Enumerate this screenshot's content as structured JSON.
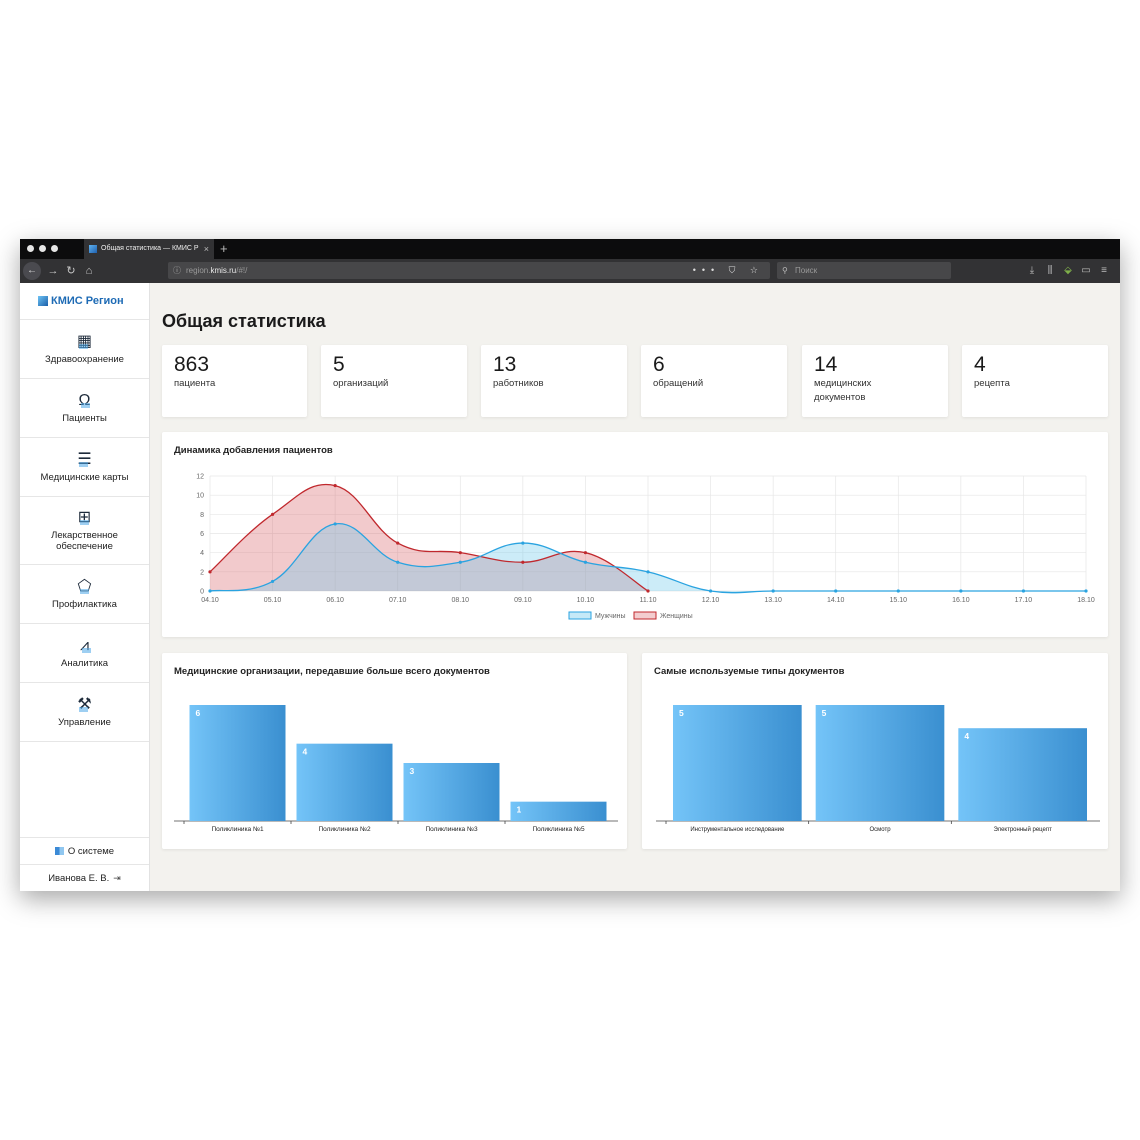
{
  "browser": {
    "tab_title": "Общая статистика — КМИС Р",
    "new_tab": "+",
    "url_prefix": "region.",
    "url_host": "kmis.ru",
    "url_path": "/#!/",
    "url_actions": "••• ⛉ ☆",
    "search_placeholder": "Поиск"
  },
  "app": {
    "logo_text": "КМИС Регион",
    "nav": [
      {
        "label": "Здравоохранение",
        "icon": "hospital-icon"
      },
      {
        "label": "Пациенты",
        "icon": "patient-icon"
      },
      {
        "label": "Медицинские карты",
        "icon": "medical-card-icon"
      },
      {
        "label": "Лекарственное обеспечение",
        "icon": "pills-icon"
      },
      {
        "label": "Профилактика",
        "icon": "prevention-icon"
      },
      {
        "label": "Аналитика",
        "icon": "analytics-icon"
      },
      {
        "label": "Управление",
        "icon": "wrench-icon"
      }
    ],
    "about_label": "О системе",
    "user_name": "Иванова Е. В."
  },
  "page": {
    "title": "Общая статистика",
    "stats": [
      {
        "value": "863",
        "label": "пациента"
      },
      {
        "value": "5",
        "label": "организаций"
      },
      {
        "value": "13",
        "label": "работников"
      },
      {
        "value": "6",
        "label": "обращений"
      },
      {
        "value": "14",
        "label": "медицинских документов"
      },
      {
        "value": "4",
        "label": "рецепта"
      }
    ]
  },
  "colors": {
    "men": "#2aa3e0",
    "women": "#c0282d",
    "bar_light": "#74c4f8",
    "bar_dark": "#3a8fd0"
  },
  "chart_data": [
    {
      "type": "area",
      "title": "Динамика добавления пациентов",
      "categories": [
        "04.10",
        "05.10",
        "06.10",
        "07.10",
        "08.10",
        "09.10",
        "10.10",
        "11.10",
        "12.10",
        "13.10",
        "14.10",
        "15.10",
        "16.10",
        "17.10",
        "18.10"
      ],
      "yticks": [
        0,
        2,
        4,
        6,
        8,
        10,
        12
      ],
      "ylim": [
        0,
        12
      ],
      "grid": true,
      "legend_position": "bottom",
      "series": [
        {
          "name": "Мужчины",
          "color": "#2aa3e0",
          "values": [
            0,
            1,
            7,
            3,
            3,
            5,
            3,
            2,
            0,
            0,
            0,
            0,
            0,
            0,
            0
          ]
        },
        {
          "name": "Женщины",
          "color": "#c0282d",
          "values": [
            2,
            8,
            11,
            5,
            4,
            3,
            4,
            0,
            null,
            null,
            null,
            null,
            null,
            null,
            null
          ]
        }
      ]
    },
    {
      "type": "bar",
      "title": "Медицинские организации, передавшие больше всего документов",
      "categories": [
        "Поликлиника №1",
        "Поликлиника №2",
        "Поликлиника №3",
        "Поликлиника №5"
      ],
      "values": [
        6,
        4,
        3,
        1
      ],
      "ylim": [
        0,
        6
      ]
    },
    {
      "type": "bar",
      "title": "Самые используемые типы документов",
      "categories": [
        "Инструментальное исследование",
        "Осмотр",
        "Электронный рецепт"
      ],
      "values": [
        5,
        5,
        4
      ],
      "ylim": [
        0,
        5
      ]
    }
  ]
}
